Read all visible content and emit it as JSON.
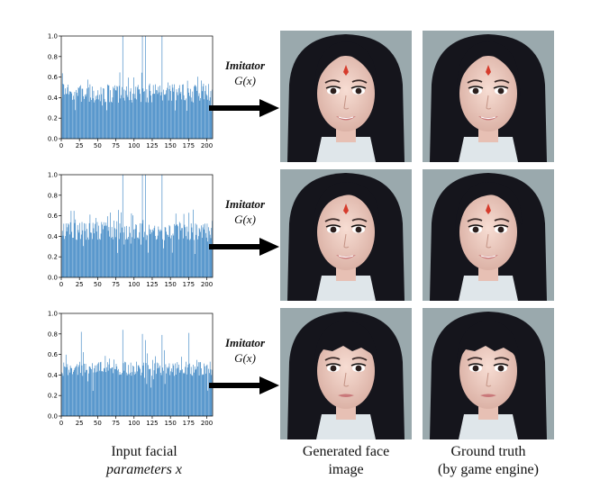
{
  "imitator": {
    "name": "Imitator",
    "function": "G(x)"
  },
  "captions": {
    "input": {
      "line1": "Input facial",
      "line2": "parameters  x"
    },
    "generated": {
      "line1": "Generated face",
      "line2": "image"
    },
    "ground_truth": {
      "line1": "Ground truth",
      "line2": "(by game engine)"
    }
  },
  "colors": {
    "bar": "#2f7ec0",
    "hair": "#15151c",
    "skin": "#f0cfc4",
    "bg": "#9aa9ad"
  },
  "chart_data": [
    {
      "type": "bar",
      "title": "",
      "xlabel": "",
      "ylabel": "",
      "xlim": [
        0,
        208
      ],
      "ylim": [
        0.0,
        1.0
      ],
      "xticks": [
        0,
        25,
        50,
        75,
        100,
        125,
        150,
        175,
        200
      ],
      "yticks": [
        "0.0",
        "0.2",
        "0.4",
        "0.6",
        "0.8",
        "1.0"
      ],
      "spikes": {
        "84": 1.0,
        "111": 1.0,
        "115": 1.0,
        "138": 1.0
      },
      "base": 0.44,
      "amp": 0.09,
      "seed": 7
    },
    {
      "type": "bar",
      "title": "",
      "xlabel": "",
      "ylabel": "",
      "xlim": [
        0,
        208
      ],
      "ylim": [
        0.0,
        1.0
      ],
      "xticks": [
        0,
        25,
        50,
        75,
        100,
        125,
        150,
        175,
        200
      ],
      "yticks": [
        "0.0",
        "0.2",
        "0.4",
        "0.6",
        "0.8",
        "1.0"
      ],
      "spikes": {
        "84": 1.0,
        "111": 1.0,
        "115": 1.0,
        "138": 1.0
      },
      "base": 0.45,
      "amp": 0.09,
      "seed": 23
    },
    {
      "type": "bar",
      "title": "",
      "xlabel": "",
      "ylabel": "",
      "xlim": [
        0,
        208
      ],
      "ylim": [
        0.0,
        1.0
      ],
      "xticks": [
        0,
        25,
        50,
        75,
        100,
        125,
        150,
        175,
        200
      ],
      "yticks": [
        "0.0",
        "0.2",
        "0.4",
        "0.6",
        "0.8",
        "1.0"
      ],
      "spikes": {
        "27": 0.82,
        "84": 0.84,
        "111": 0.8,
        "115": 0.74,
        "138": 0.79,
        "175": 0.81
      },
      "base": 0.46,
      "amp": 0.07,
      "seed": 41
    }
  ]
}
